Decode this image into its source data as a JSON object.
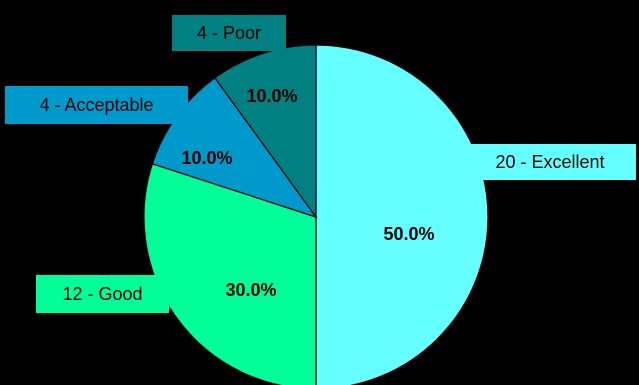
{
  "chart_data": {
    "type": "pie",
    "title": "",
    "start_angle_deg": 0,
    "direction": "clockwise",
    "slices": [
      {
        "category": "20 - Excellent",
        "value": 20,
        "percent_label": "50.0%",
        "color": "#66FFFF"
      },
      {
        "category": "12 - Good",
        "value": 12,
        "percent_label": "30.0%",
        "color": "#00FF99"
      },
      {
        "category": "4 - Acceptable",
        "value": 4,
        "percent_label": "10.0%",
        "color": "#0099CC"
      },
      {
        "category": "4 - Poor",
        "value": 4,
        "percent_label": "10.0%",
        "color": "#008080"
      }
    ],
    "legend": "none"
  },
  "background_color": "#000000"
}
